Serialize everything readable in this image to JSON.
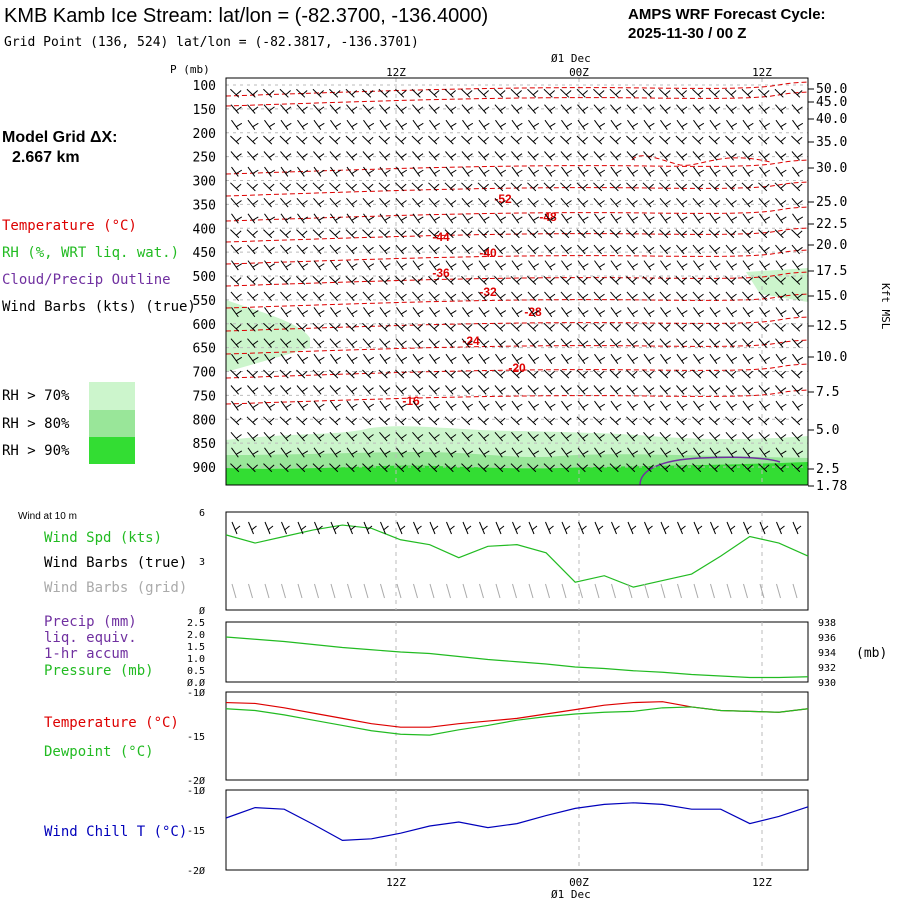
{
  "header": {
    "title": "KMB Kamb Ice Stream:  lat/lon = (-82.3700, -136.4000)",
    "grid_point": "Grid Point (136, 524) lat/lon = (-82.3817, -136.3701)",
    "forecast_label": "AMPS WRF Forecast Cycle:",
    "forecast_cycle": "2025-11-30 / 00  Z"
  },
  "sidebar": {
    "model_grid_label": "Model Grid ΔX:",
    "model_grid_value": "2.667 km",
    "legend_temperature": "Temperature (°C)",
    "legend_rh": "RH (%, WRT liq. wat.)",
    "legend_cloud": "Cloud/Precip Outline",
    "legend_wind": "Wind Barbs (kts) (true)",
    "rh_70": "RH > 70%",
    "rh_80": "RH > 80%",
    "rh_90": "RH > 90%"
  },
  "colors": {
    "temperature": "#dd0000",
    "rh": "#22bb22",
    "cloud": "#7030a0",
    "wind": "#000000",
    "rh70_fill": "#ccf5cc",
    "rh80_fill": "#99e699",
    "rh90_fill": "#33dd33",
    "wind_chill": "#0000bb",
    "grid_barbs": "#aaaaaa",
    "grid_line": "#bbbbbb"
  },
  "chart_data": [
    {
      "type": "heatmap",
      "name": "vertical cross-section",
      "pressure_axis_label": "P (mb)",
      "pressure_levels": [
        100,
        150,
        200,
        250,
        300,
        350,
        400,
        450,
        500,
        550,
        600,
        650,
        700,
        750,
        800,
        850,
        900
      ],
      "kft_axis_label": "Kft MSL",
      "kft_ticks": [
        "50.0",
        "45.0",
        "40.0",
        "35.0",
        "30.0",
        "25.0",
        "22.5",
        "20.0",
        "17.5",
        "15.0",
        "12.5",
        "10.0",
        "7.5",
        "5.0",
        "2.5",
        "1.78"
      ],
      "time_ticks_top": [
        "12Z",
        "00Z",
        "12Z"
      ],
      "date_label": "Ø1 Dec",
      "temperature_contour_labels": [
        "-52",
        "-48",
        "-44",
        "-40",
        "-36",
        "-32",
        "-28",
        "-24",
        "-20",
        "-16"
      ]
    },
    {
      "type": "line",
      "name": "wind at 10 m",
      "panel_title": "Wind at 10 m",
      "legend": [
        "Wind Spd (kts)",
        "Wind Barbs (true)",
        "Wind Barbs (grid)"
      ],
      "ylim": [
        0,
        6
      ],
      "y_ticks": [
        "6",
        "3",
        "Ø"
      ],
      "x": [
        0,
        2,
        4,
        6,
        8,
        10,
        12,
        14,
        16,
        18,
        20,
        22,
        24,
        26,
        28,
        30,
        32,
        34,
        36,
        38,
        40
      ],
      "series": [
        {
          "name": "Wind Spd (kts)",
          "values": [
            4.6,
            4.1,
            4.5,
            4.9,
            5.2,
            5.0,
            4.3,
            4.0,
            3.2,
            3.9,
            4.0,
            3.5,
            1.7,
            2.1,
            1.4,
            1.8,
            2.2,
            3.3,
            4.5,
            4.1,
            3.3
          ]
        }
      ]
    },
    {
      "type": "line",
      "name": "precip and pressure",
      "legend": [
        "Precip (mm)",
        "liq. equiv.",
        "1-hr accum",
        "Pressure (mb)"
      ],
      "left_ylim": [
        0,
        2.5
      ],
      "left_ticks": [
        "2.5",
        "2.0",
        "1.5",
        "1.0",
        "0.5",
        "Ø.Ø"
      ],
      "right_ylim": [
        930,
        938
      ],
      "right_ticks": [
        "938",
        "936",
        "934",
        "932",
        "930"
      ],
      "right_unit": "(mb)",
      "x": [
        0,
        2,
        4,
        6,
        8,
        10,
        12,
        14,
        16,
        18,
        20,
        22,
        24,
        26,
        28,
        30,
        32,
        34,
        36,
        38,
        40
      ],
      "series": [
        {
          "name": "Pressure (mb)",
          "values": [
            936.0,
            935.7,
            935.4,
            935.0,
            934.6,
            934.3,
            934.0,
            933.8,
            933.4,
            933.0,
            932.7,
            932.4,
            932.0,
            931.8,
            931.5,
            931.3,
            931.0,
            930.8,
            930.6,
            930.6,
            930.7
          ]
        }
      ]
    },
    {
      "type": "line",
      "name": "temperature and dewpoint",
      "legend": [
        "Temperature (°C)",
        "Dewpoint (°C)"
      ],
      "ylim": [
        -20,
        -10
      ],
      "y_ticks": [
        "-1Ø",
        "-15",
        "-2Ø"
      ],
      "x": [
        0,
        2,
        4,
        6,
        8,
        10,
        12,
        14,
        16,
        18,
        20,
        22,
        24,
        26,
        28,
        30,
        32,
        34,
        36,
        38,
        40
      ],
      "series": [
        {
          "name": "Temperature (°C)",
          "values": [
            -11.2,
            -11.3,
            -11.8,
            -12.4,
            -13.0,
            -13.6,
            -14.0,
            -14.0,
            -13.6,
            -13.3,
            -13.0,
            -12.5,
            -12.0,
            -11.5,
            -11.2,
            -11.1,
            -11.7,
            -12.1,
            -12.2,
            -12.3,
            -11.9
          ]
        },
        {
          "name": "Dewpoint (°C)",
          "values": [
            -11.9,
            -12.1,
            -12.6,
            -13.2,
            -13.8,
            -14.4,
            -14.8,
            -14.9,
            -14.3,
            -13.8,
            -13.2,
            -12.8,
            -12.5,
            -12.3,
            -12.2,
            -11.8,
            -11.7,
            -12.1,
            -12.2,
            -12.3,
            -11.9
          ]
        }
      ]
    },
    {
      "type": "line",
      "name": "wind chill",
      "legend": [
        "Wind Chill T (°C)"
      ],
      "ylim": [
        -20,
        -10
      ],
      "y_ticks": [
        "-1Ø",
        "-15",
        "-2Ø"
      ],
      "time_ticks_bottom": [
        "12Z",
        "00Z",
        "12Z"
      ],
      "date_label": "Ø1 Dec",
      "x": [
        0,
        2,
        4,
        6,
        8,
        10,
        12,
        14,
        16,
        18,
        20,
        22,
        24,
        26,
        28,
        30,
        32,
        34,
        36,
        38,
        40
      ],
      "series": [
        {
          "name": "Wind Chill T (°C)",
          "values": [
            -13.5,
            -12.2,
            -12.4,
            -14.3,
            -16.3,
            -16.1,
            -15.4,
            -14.5,
            -14.0,
            -14.7,
            -14.2,
            -13.2,
            -12.3,
            -11.8,
            -11.6,
            -11.8,
            -12.4,
            -12.4,
            -14.2,
            -13.3,
            -12.1
          ]
        }
      ]
    }
  ]
}
